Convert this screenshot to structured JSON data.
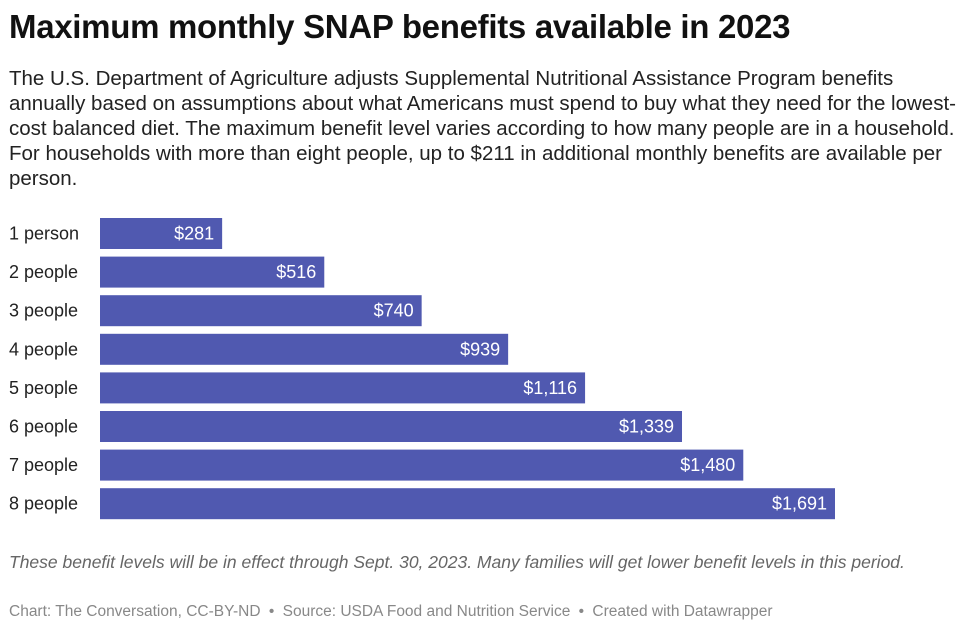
{
  "title": "Maximum monthly SNAP benefits available in 2023",
  "subtitle": "The U.S. Department of Agriculture adjusts Supplemental Nutritional Assistance Program benefits annually based on assumptions about what Americans must spend to buy what they need for the lowest-cost balanced diet. The maximum benefit level varies according to how many people are in a household. For households with more than eight people, up to $211 in additional monthly benefits are available per person.",
  "notes": "These benefit levels will be in effect through Sept. 30, 2023. Many families will get lower benefit levels in this period.",
  "footer": {
    "chart_credit": "Chart: The Conversation, CC-BY-ND",
    "separator": "•",
    "source": "Source: USDA Food and Nutrition Service",
    "created_with": "Created with Datawrapper"
  },
  "colors": {
    "bar": "#5059b0"
  },
  "chart_data": {
    "type": "bar",
    "orientation": "horizontal",
    "categories": [
      "1 person",
      "2 people",
      "3 people",
      "4 people",
      "5 people",
      "6 people",
      "7 people",
      "8 people"
    ],
    "values": [
      281,
      516,
      740,
      939,
      1116,
      1339,
      1480,
      1691
    ],
    "value_labels": [
      "$281",
      "$516",
      "$740",
      "$939",
      "$1,116",
      "$1,339",
      "$1,480",
      "$1,691"
    ],
    "xlim": [
      0,
      1691
    ],
    "grid": false,
    "legend": "none"
  }
}
